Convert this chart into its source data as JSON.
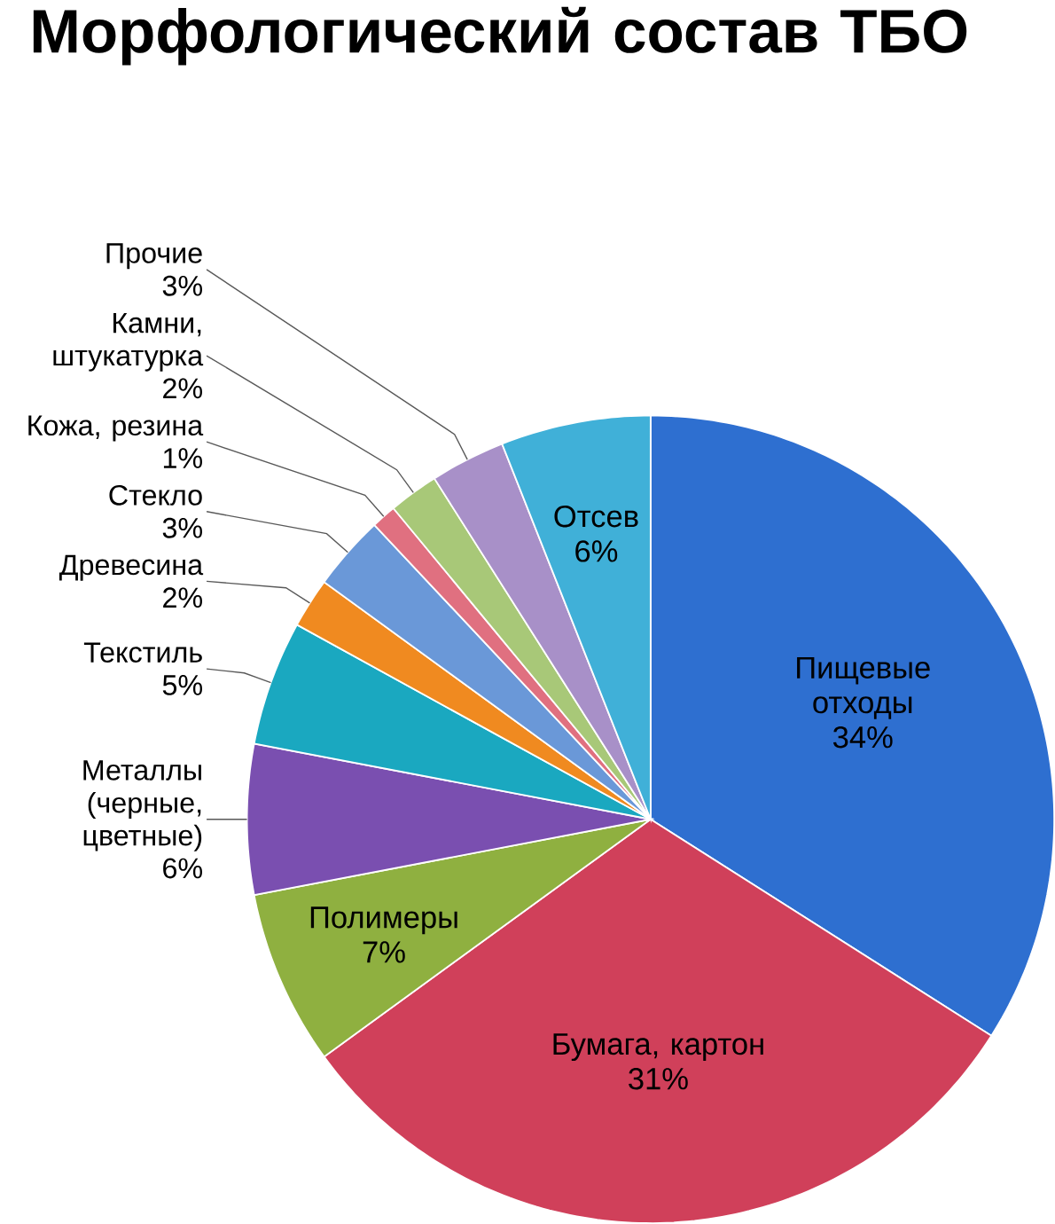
{
  "chart_data": {
    "type": "pie",
    "title": "Морфологический состав ТБО",
    "categories": [
      "Пищевые отходы",
      "Бумага, картон",
      "Полимеры",
      "Металлы (черные, цветные)",
      "Текстиль",
      "Древесина",
      "Стекло",
      "Кожа, резина",
      "Камни, штукатурка",
      "Прочие",
      "Отсев"
    ],
    "values": [
      34,
      31,
      7,
      6,
      5,
      2,
      3,
      1,
      2,
      3,
      6
    ],
    "value_labels": [
      "34%",
      "31%",
      "7%",
      "6%",
      "5%",
      "2%",
      "3%",
      "1%",
      "2%",
      "3%",
      "6%"
    ],
    "colors": [
      "#2e6fd0",
      "#d0405a",
      "#8fb040",
      "#7a4fb0",
      "#1aa8c0",
      "#f08a20",
      "#6a98d8",
      "#e07080",
      "#a8c878",
      "#a890c8",
      "#40b0d8"
    ]
  }
}
